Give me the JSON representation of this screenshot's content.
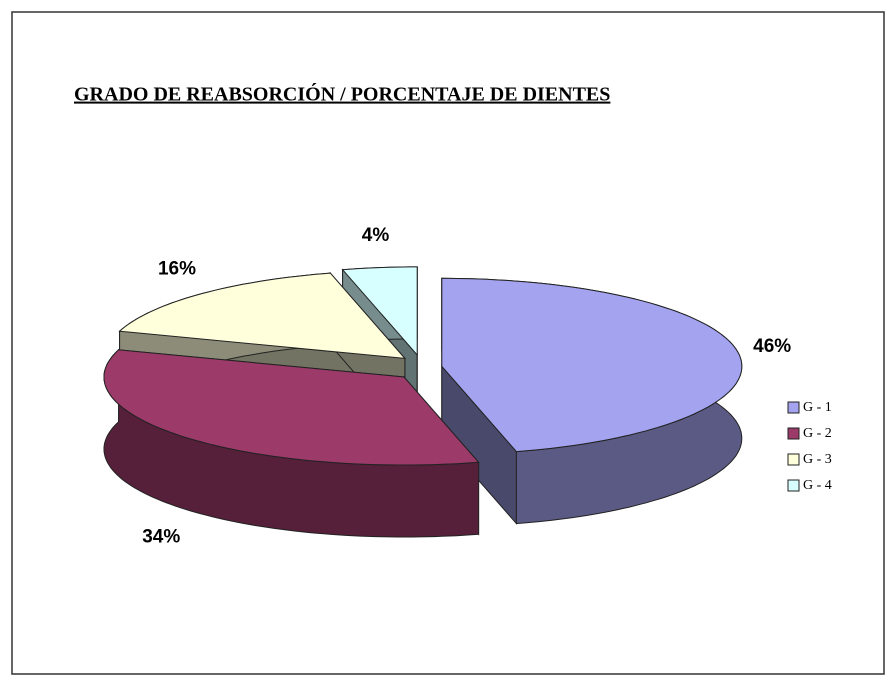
{
  "chart_data": {
    "type": "pie",
    "title": "GRADO DE REABSORCIÓN / PORCENTAJE DE DIENTES",
    "categories": [
      "G - 1",
      "G - 2",
      "G - 3",
      "G - 4"
    ],
    "values": [
      46,
      34,
      16,
      4
    ],
    "value_labels": [
      "46%",
      "34%",
      "16%",
      "4%"
    ],
    "colors": [
      "#a3a3f0",
      "#9c3a6a",
      "#ffffdc",
      "#d8ffff"
    ],
    "legend": "right"
  }
}
